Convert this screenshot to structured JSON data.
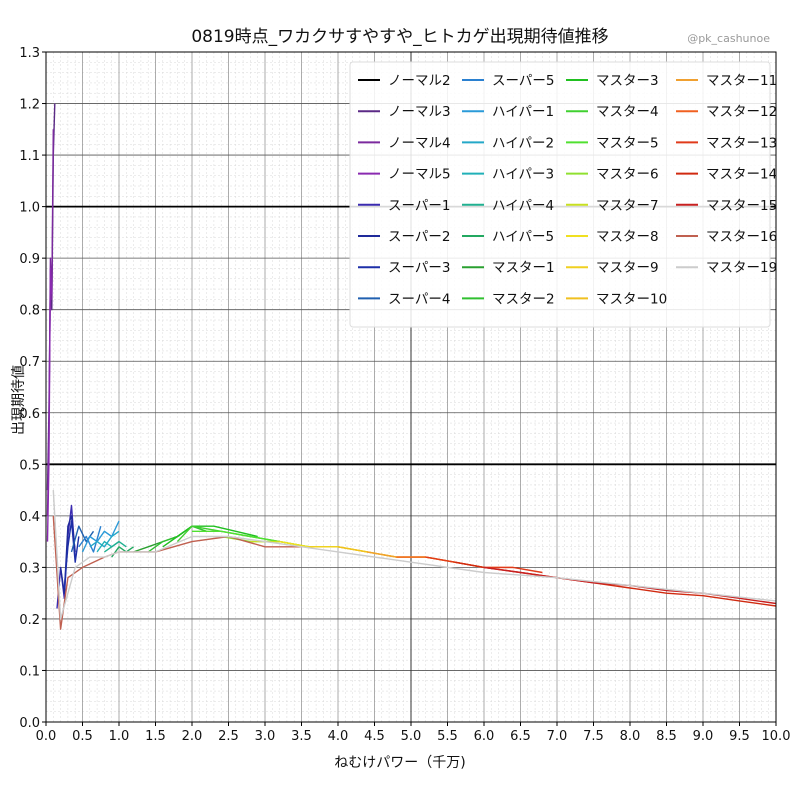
{
  "header": {
    "title": "0819時点_ワカクサすやすや_ヒトカゲ出現期待値推移",
    "credit": "@pk_cashunoe"
  },
  "chart_data": {
    "type": "line",
    "title": "0819時点_ワカクサすやすや_ヒトカゲ出現期待値推移",
    "xlabel": "ねむけパワー（千万)",
    "ylabel": "出現期待値",
    "xlim": [
      0.0,
      10.0
    ],
    "ylim": [
      0.0,
      1.3
    ],
    "xticks": [
      0.0,
      0.5,
      1.0,
      1.5,
      2.0,
      2.5,
      3.0,
      3.5,
      4.0,
      4.5,
      5.0,
      5.5,
      6.0,
      6.5,
      7.0,
      7.5,
      8.0,
      8.5,
      9.0,
      9.5,
      10.0
    ],
    "xtick_labels": [
      "0.0",
      "0.5",
      "1.0",
      "1.5",
      "2.0",
      "2.5",
      "3.0",
      "3.5",
      "4.0",
      "4.5",
      "5.0",
      "5.5",
      "6.0",
      "6.5",
      "7.0",
      "7.5",
      "8.0",
      "8.5",
      "9.0",
      "9.5",
      "10.0"
    ],
    "yticks": [
      0.0,
      0.1,
      0.2,
      0.3,
      0.4,
      0.5,
      0.6,
      0.7,
      0.8,
      0.9,
      1.0,
      1.1,
      1.2,
      1.3
    ],
    "ytick_labels": [
      "0.0",
      "0.1",
      "0.2",
      "0.3",
      "0.4",
      "0.5",
      "0.6",
      "0.7",
      "0.8",
      "0.9",
      "1.0",
      "1.1",
      "1.2",
      "1.3"
    ],
    "reference_lines": [
      1.0,
      0.5
    ],
    "grid": true,
    "legend_position": "top-right",
    "series": [
      {
        "name": "ノーマル2",
        "color": "#000000",
        "x": [],
        "y": []
      },
      {
        "name": "ノーマル3",
        "color": "#5b2a86",
        "x": [
          0.02,
          0.04,
          0.06,
          0.08,
          0.1,
          0.12
        ],
        "y": [
          0.45,
          0.6,
          0.85,
          0.8,
          1.1,
          1.2
        ]
      },
      {
        "name": "ノーマル4",
        "color": "#7b2a9e",
        "x": [
          0.02,
          0.04,
          0.06,
          0.08,
          0.1
        ],
        "y": [
          0.4,
          0.55,
          0.9,
          0.82,
          1.15
        ]
      },
      {
        "name": "ノーマル5",
        "color": "#8a2ab0",
        "x": [
          0.02,
          0.04,
          0.06,
          0.08
        ],
        "y": [
          0.35,
          0.5,
          0.88,
          0.83
        ]
      },
      {
        "name": "スーパー1",
        "color": "#3b2bb0",
        "x": [
          0.15,
          0.2,
          0.25,
          0.3,
          0.35,
          0.4
        ],
        "y": [
          0.22,
          0.3,
          0.24,
          0.36,
          0.42,
          0.32
        ]
      },
      {
        "name": "スーパー2",
        "color": "#1f2a9a",
        "x": [
          0.2,
          0.25,
          0.3,
          0.35,
          0.4
        ],
        "y": [
          0.3,
          0.25,
          0.38,
          0.4,
          0.33
        ]
      },
      {
        "name": "スーパー3",
        "color": "#1d2fa8",
        "x": [
          0.25,
          0.3,
          0.35,
          0.4,
          0.45
        ],
        "y": [
          0.26,
          0.34,
          0.39,
          0.31,
          0.36
        ]
      },
      {
        "name": "スーパー4",
        "color": "#2060b0",
        "x": [
          0.35,
          0.45,
          0.55,
          0.65
        ],
        "y": [
          0.33,
          0.38,
          0.35,
          0.37
        ]
      },
      {
        "name": "スーパー5",
        "color": "#2a80d0",
        "x": [
          0.45,
          0.55,
          0.65,
          0.75
        ],
        "y": [
          0.34,
          0.36,
          0.33,
          0.38
        ]
      },
      {
        "name": "ハイパー1",
        "color": "#2a9ad8",
        "x": [
          0.5,
          0.6,
          0.7,
          0.8,
          0.9,
          1.0
        ],
        "y": [
          0.33,
          0.36,
          0.35,
          0.37,
          0.36,
          0.39
        ]
      },
      {
        "name": "ハイパー2",
        "color": "#24a8c8",
        "x": [
          0.6,
          0.7,
          0.8,
          0.9,
          1.0
        ],
        "y": [
          0.34,
          0.35,
          0.34,
          0.36,
          0.37
        ]
      },
      {
        "name": "ハイパー3",
        "color": "#20b0b8",
        "x": [
          0.7,
          0.8,
          0.9,
          1.0
        ],
        "y": [
          0.33,
          0.35,
          0.34,
          0.35
        ]
      },
      {
        "name": "ハイパー4",
        "color": "#20b090",
        "x": [
          0.8,
          0.9,
          1.0,
          1.1
        ],
        "y": [
          0.33,
          0.34,
          0.35,
          0.34
        ]
      },
      {
        "name": "ハイパー5",
        "color": "#22a860",
        "x": [
          0.9,
          1.0,
          1.1,
          1.2
        ],
        "y": [
          0.32,
          0.34,
          0.33,
          0.34
        ]
      },
      {
        "name": "マスター1",
        "color": "#2aa030",
        "x": [
          1.2,
          1.4,
          1.6,
          1.8,
          2.0
        ],
        "y": [
          0.33,
          0.34,
          0.35,
          0.36,
          0.38
        ]
      },
      {
        "name": "マスター2",
        "color": "#30c030",
        "x": [
          1.4,
          1.6,
          1.8,
          2.0,
          2.2
        ],
        "y": [
          0.33,
          0.35,
          0.36,
          0.38,
          0.37
        ]
      },
      {
        "name": "マスター3",
        "color": "#20c020",
        "x": [
          1.6,
          1.8,
          2.0,
          2.3,
          2.6,
          2.9
        ],
        "y": [
          0.34,
          0.36,
          0.38,
          0.38,
          0.37,
          0.36
        ]
      },
      {
        "name": "マスター4",
        "color": "#40d030",
        "x": [
          1.8,
          2.0,
          2.4,
          2.8,
          3.2
        ],
        "y": [
          0.35,
          0.38,
          0.37,
          0.36,
          0.35
        ]
      },
      {
        "name": "マスター5",
        "color": "#50e030",
        "x": [
          2.0,
          2.4,
          2.8,
          3.2,
          3.6
        ],
        "y": [
          0.37,
          0.37,
          0.36,
          0.35,
          0.34
        ]
      },
      {
        "name": "マスター6",
        "color": "#90e030",
        "x": [
          2.4,
          2.8,
          3.2,
          3.6,
          4.0
        ],
        "y": [
          0.36,
          0.35,
          0.35,
          0.34,
          0.34
        ]
      },
      {
        "name": "マスター7",
        "color": "#c8e020",
        "x": [
          2.8,
          3.2,
          3.6,
          4.0,
          4.4
        ],
        "y": [
          0.35,
          0.35,
          0.34,
          0.34,
          0.33
        ]
      },
      {
        "name": "マスター8",
        "color": "#f0e020",
        "x": [
          3.2,
          3.6,
          4.0,
          4.4,
          4.8
        ],
        "y": [
          0.35,
          0.34,
          0.34,
          0.33,
          0.32
        ]
      },
      {
        "name": "マスター9",
        "color": "#f0d020",
        "x": [
          3.6,
          4.0,
          4.4,
          4.8,
          5.2
        ],
        "y": [
          0.34,
          0.34,
          0.33,
          0.32,
          0.32
        ]
      },
      {
        "name": "マスター10",
        "color": "#f0c020",
        "x": [
          4.0,
          4.4,
          4.8,
          5.2,
          5.6
        ],
        "y": [
          0.34,
          0.33,
          0.32,
          0.32,
          0.31
        ]
      },
      {
        "name": "マスター11",
        "color": "#f0a030",
        "x": [
          4.4,
          4.8,
          5.2,
          5.6,
          6.0
        ],
        "y": [
          0.33,
          0.32,
          0.32,
          0.31,
          0.3
        ]
      },
      {
        "name": "マスター12",
        "color": "#f06020",
        "x": [
          4.8,
          5.2,
          5.6,
          6.0,
          6.4
        ],
        "y": [
          0.32,
          0.32,
          0.31,
          0.3,
          0.3
        ]
      },
      {
        "name": "マスター13",
        "color": "#e03a1a",
        "x": [
          5.2,
          5.6,
          6.0,
          6.4,
          6.8
        ],
        "y": [
          0.32,
          0.31,
          0.3,
          0.3,
          0.29
        ]
      },
      {
        "name": "マスター14",
        "color": "#d02a10",
        "x": [
          5.6,
          6.0,
          6.5,
          7.0,
          7.5,
          8.0,
          8.5,
          9.0,
          9.5,
          10.0
        ],
        "y": [
          0.31,
          0.3,
          0.29,
          0.28,
          0.27,
          0.26,
          0.25,
          0.245,
          0.235,
          0.225
        ]
      },
      {
        "name": "マスター15",
        "color": "#c82020",
        "x": [
          6.0,
          6.5,
          7.0,
          7.5,
          8.0,
          8.5,
          9.0,
          9.5,
          10.0
        ],
        "y": [
          0.3,
          0.29,
          0.28,
          0.27,
          0.265,
          0.255,
          0.25,
          0.24,
          0.23
        ]
      },
      {
        "name": "マスター16",
        "color": "#c06050",
        "x": [
          0.1,
          0.2,
          0.3,
          0.5,
          0.8,
          1.0,
          1.5,
          2.0,
          2.5,
          3.0,
          3.5
        ],
        "y": [
          0.4,
          0.18,
          0.28,
          0.3,
          0.32,
          0.33,
          0.33,
          0.35,
          0.36,
          0.34,
          0.34
        ]
      },
      {
        "name": "マスター19",
        "color": "#cccccc",
        "x": [
          0.1,
          0.2,
          0.4,
          0.6,
          0.8,
          1.0,
          1.5,
          2.0,
          2.5,
          3.0,
          4.0,
          5.0,
          6.0,
          7.0,
          8.0,
          9.0,
          10.0
        ],
        "y": [
          0.45,
          0.2,
          0.3,
          0.32,
          0.32,
          0.33,
          0.33,
          0.36,
          0.36,
          0.35,
          0.33,
          0.31,
          0.29,
          0.28,
          0.265,
          0.25,
          0.235
        ]
      }
    ]
  }
}
